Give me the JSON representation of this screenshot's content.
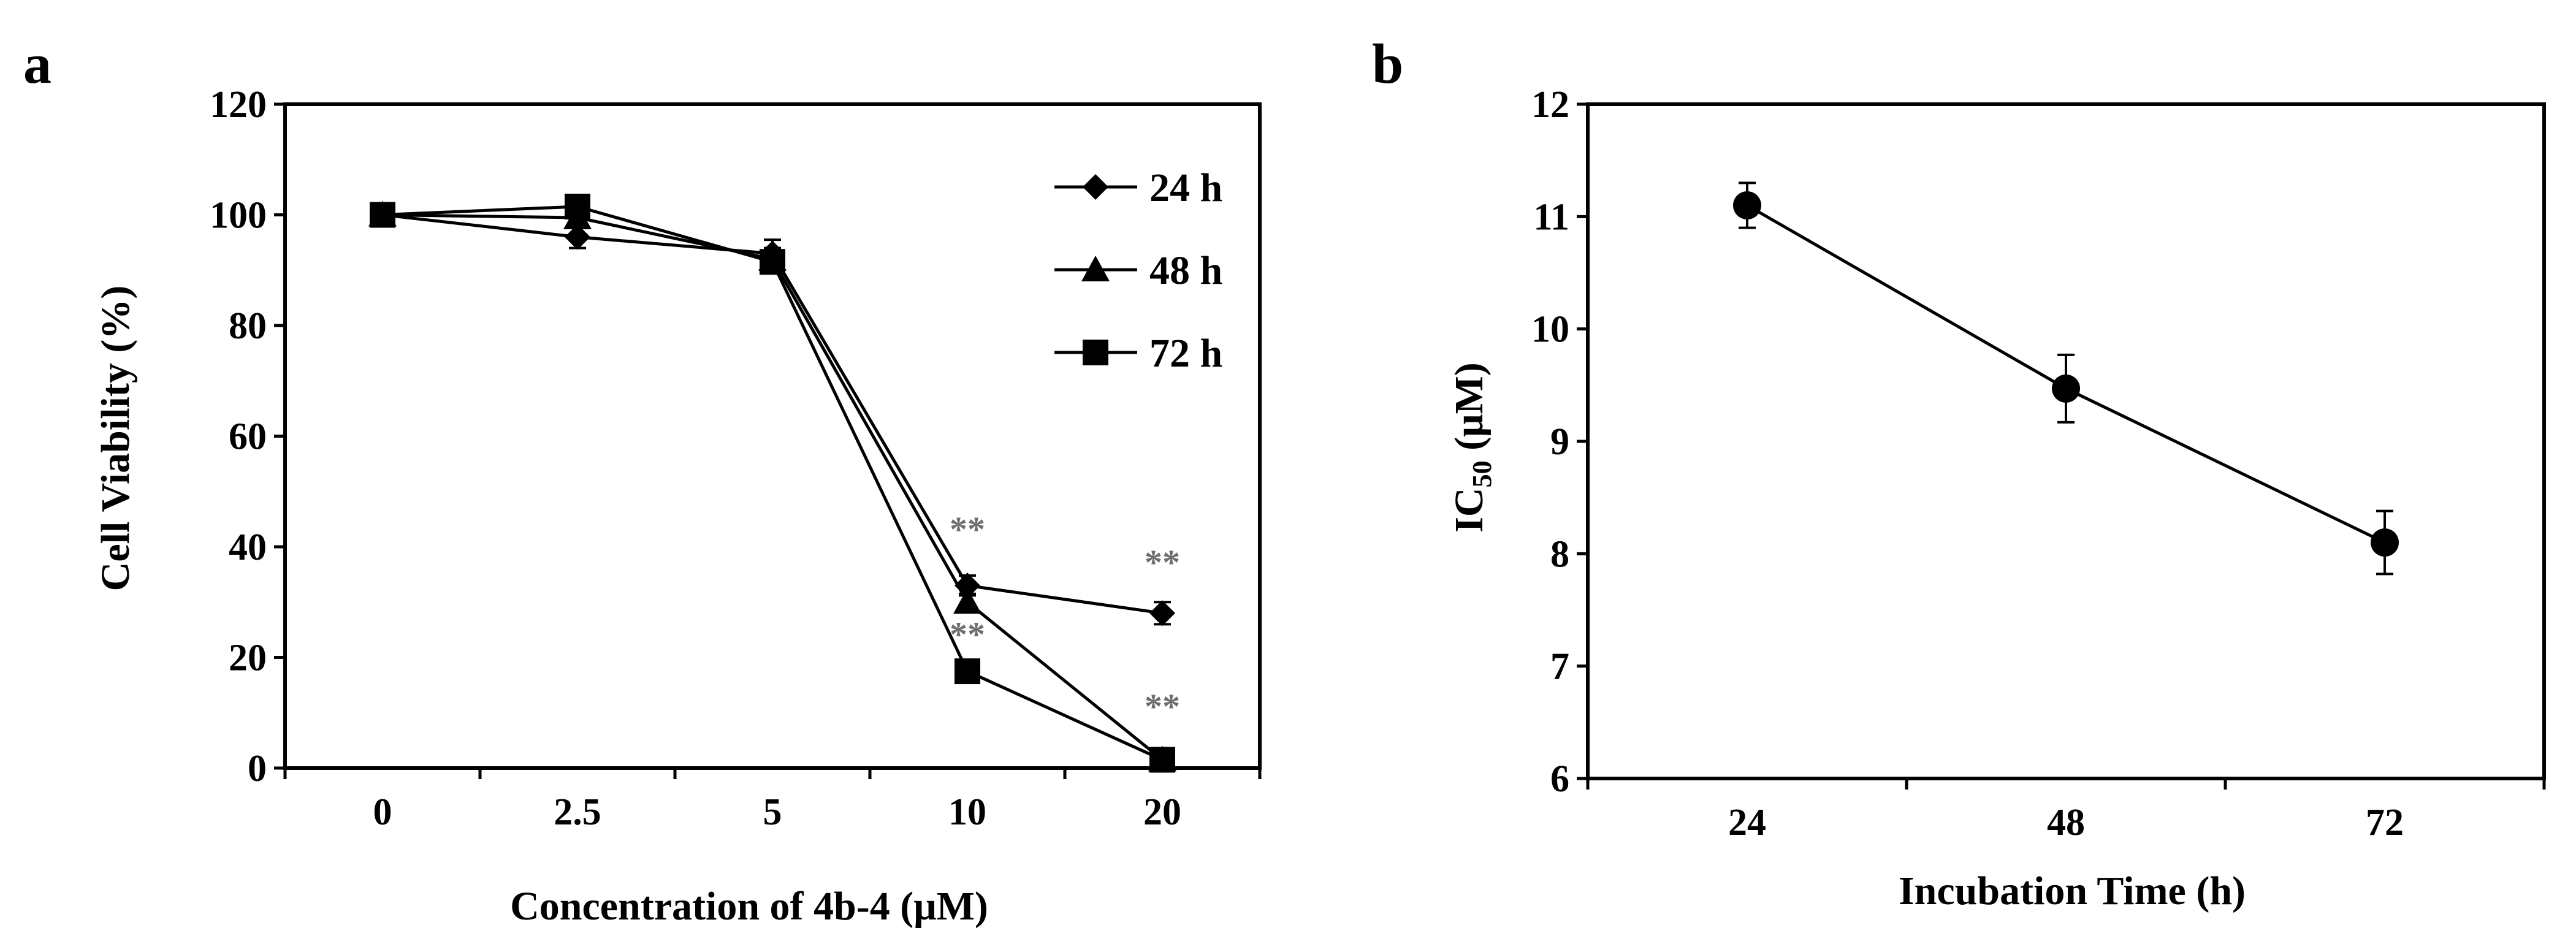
{
  "chart_data": [
    {
      "panel": "a",
      "type": "line",
      "xlabel": "Concentration of 4b-4 (μM)",
      "ylabel": "Cell Viability (%)",
      "categories": [
        "0",
        "2.5",
        "5",
        "10",
        "20"
      ],
      "ylim": [
        0,
        120
      ],
      "yticks": [
        0,
        20,
        40,
        60,
        80,
        100,
        120
      ],
      "grid": false,
      "legend_position": "top-right",
      "series": [
        {
          "name": "24 h",
          "marker": "diamond",
          "values": [
            100,
            96,
            93,
            33,
            28
          ],
          "errors": [
            0,
            2,
            2.5,
            1.8,
            2
          ]
        },
        {
          "name": "48 h",
          "marker": "triangle",
          "values": [
            100,
            99.5,
            92,
            30,
            1.5
          ],
          "errors": [
            0,
            1.5,
            2,
            1.5,
            0.5
          ]
        },
        {
          "name": "72 h",
          "marker": "square",
          "values": [
            100,
            101.5,
            91.5,
            17.5,
            1.5
          ],
          "errors": [
            0,
            1.2,
            2,
            1.5,
            0.5
          ]
        }
      ],
      "annotations": [
        {
          "text": "**",
          "category": "10",
          "y": 41
        },
        {
          "text": "**",
          "category": "10",
          "y": 22
        },
        {
          "text": "**",
          "category": "20",
          "y": 35
        },
        {
          "text": "**",
          "category": "20",
          "y": 9
        }
      ]
    },
    {
      "panel": "b",
      "type": "line",
      "xlabel": "Incubation Time (h)",
      "ylabel_main": "IC",
      "ylabel_sub": "50",
      "ylabel_unit": " (μM)",
      "categories": [
        "24",
        "48",
        "72"
      ],
      "ylim": [
        6,
        12
      ],
      "yticks": [
        6,
        7,
        8,
        9,
        10,
        11,
        12
      ],
      "grid": false,
      "series": [
        {
          "name": "IC50",
          "marker": "circle",
          "values": [
            11.1,
            9.47,
            8.1
          ],
          "errors": [
            0.2,
            0.3,
            0.28
          ]
        }
      ]
    }
  ]
}
